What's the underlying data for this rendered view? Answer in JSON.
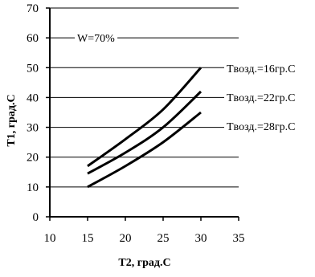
{
  "chart_data": {
    "type": "line",
    "title": "",
    "xlabel": "T2, град.С",
    "ylabel": "T1, град.С",
    "xlim": [
      10,
      35
    ],
    "ylim": [
      0,
      70
    ],
    "xticks": [
      10,
      15,
      20,
      25,
      30,
      35
    ],
    "yticks": [
      0,
      10,
      20,
      30,
      40,
      50,
      60,
      70
    ],
    "grid": "horizontal",
    "annotation": "W=70%",
    "series": [
      {
        "name": "Tвозд.=16гр.С",
        "x": [
          15,
          20,
          25,
          30
        ],
        "y": [
          17,
          26,
          36,
          50
        ]
      },
      {
        "name": "Tвозд.=22гр.С",
        "x": [
          15,
          20,
          25,
          30
        ],
        "y": [
          14.5,
          21.5,
          30,
          42
        ]
      },
      {
        "name": "Tвозд.=28гр.С",
        "x": [
          15,
          20,
          25,
          30
        ],
        "y": [
          10,
          17,
          25,
          35
        ]
      }
    ],
    "line_color": "#000000"
  }
}
